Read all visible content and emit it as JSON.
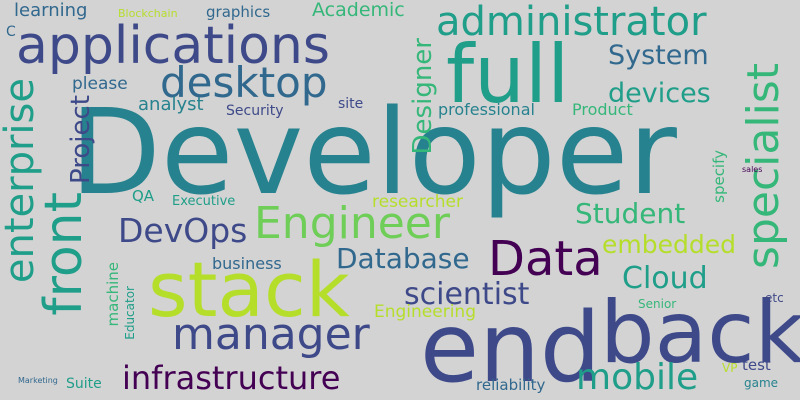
{
  "palette": {
    "background": "#d3d3d3",
    "dark_purple": "#440154",
    "indigo": "#3e4989",
    "blue_teal": "#31688e",
    "teal": "#26828e",
    "green_teal": "#1f9e89",
    "green": "#35b779",
    "light_green": "#6ece58",
    "lime": "#b5de2b"
  },
  "words": [
    {
      "text": "Developer",
      "orientation": "horizontal",
      "color": "#26828e"
    },
    {
      "text": "end",
      "orientation": "horizontal",
      "color": "#3e4989"
    },
    {
      "text": "back",
      "orientation": "horizontal",
      "color": "#3e4989"
    },
    {
      "text": "full",
      "orientation": "horizontal",
      "color": "#1f9e89"
    },
    {
      "text": "stack",
      "orientation": "horizontal",
      "color": "#b5de2b"
    },
    {
      "text": "applications",
      "orientation": "horizontal",
      "color": "#3e4989"
    },
    {
      "text": "front",
      "orientation": "vertical",
      "color": "#1f9e89"
    },
    {
      "text": "administrator",
      "orientation": "horizontal",
      "color": "#1f9e89"
    },
    {
      "text": "desktop",
      "orientation": "horizontal",
      "color": "#31688e"
    },
    {
      "text": "specialist",
      "orientation": "vertical",
      "color": "#35b779"
    },
    {
      "text": "enterprise",
      "orientation": "vertical",
      "color": "#1f9e89"
    },
    {
      "text": "manager",
      "orientation": "horizontal",
      "color": "#3e4989"
    },
    {
      "text": "Data",
      "orientation": "horizontal",
      "color": "#440154"
    },
    {
      "text": "Engineer",
      "orientation": "horizontal",
      "color": "#6ece58"
    },
    {
      "text": "mobile",
      "orientation": "horizontal",
      "color": "#1f9e89"
    },
    {
      "text": "infrastructure",
      "orientation": "horizontal",
      "color": "#440154"
    },
    {
      "text": "DevOps",
      "orientation": "horizontal",
      "color": "#3e4989"
    },
    {
      "text": "Database",
      "orientation": "horizontal",
      "color": "#31688e"
    },
    {
      "text": "Cloud",
      "orientation": "horizontal",
      "color": "#1f9e89"
    },
    {
      "text": "scientist",
      "orientation": "horizontal",
      "color": "#3e4989"
    },
    {
      "text": "Student",
      "orientation": "horizontal",
      "color": "#35b779"
    },
    {
      "text": "System",
      "orientation": "horizontal",
      "color": "#31688e"
    },
    {
      "text": "devices",
      "orientation": "horizontal",
      "color": "#1f9e89"
    },
    {
      "text": "Designer",
      "orientation": "vertical",
      "color": "#35b779"
    },
    {
      "text": "Project",
      "orientation": "vertical",
      "color": "#3e4989"
    },
    {
      "text": "embedded",
      "orientation": "horizontal",
      "color": "#b5de2b"
    },
    {
      "text": "Academic",
      "orientation": "horizontal",
      "color": "#35b779"
    },
    {
      "text": "learning",
      "orientation": "horizontal",
      "color": "#31688e"
    },
    {
      "text": "Blockchain",
      "orientation": "horizontal",
      "color": "#b5de2b"
    },
    {
      "text": "graphics",
      "orientation": "horizontal",
      "color": "#31688e"
    },
    {
      "text": "C",
      "orientation": "horizontal",
      "color": "#31688e"
    },
    {
      "text": "please",
      "orientation": "horizontal",
      "color": "#31688e"
    },
    {
      "text": "analyst",
      "orientation": "horizontal",
      "color": "#26828e"
    },
    {
      "text": "Security",
      "orientation": "horizontal",
      "color": "#3e4989"
    },
    {
      "text": "site",
      "orientation": "horizontal",
      "color": "#3e4989"
    },
    {
      "text": "professional",
      "orientation": "horizontal",
      "color": "#26828e"
    },
    {
      "text": "Product",
      "orientation": "horizontal",
      "color": "#35b779"
    },
    {
      "text": "QA",
      "orientation": "horizontal",
      "color": "#1f9e89"
    },
    {
      "text": "Executive",
      "orientation": "horizontal",
      "color": "#1f9e89"
    },
    {
      "text": "researcher",
      "orientation": "horizontal",
      "color": "#b5de2b"
    },
    {
      "text": "specify",
      "orientation": "vertical",
      "color": "#35b779"
    },
    {
      "text": "sales",
      "orientation": "horizontal",
      "color": "#440154"
    },
    {
      "text": "business",
      "orientation": "horizontal",
      "color": "#31688e"
    },
    {
      "text": "machine",
      "orientation": "vertical",
      "color": "#35b779"
    },
    {
      "text": "Educator",
      "orientation": "vertical",
      "color": "#1f9e89"
    },
    {
      "text": "Engineering",
      "orientation": "horizontal",
      "color": "#b5de2b"
    },
    {
      "text": "Senior",
      "orientation": "horizontal",
      "color": "#35b779"
    },
    {
      "text": "etc",
      "orientation": "horizontal",
      "color": "#3e4989"
    },
    {
      "text": "test",
      "orientation": "horizontal",
      "color": "#3e4989"
    },
    {
      "text": "VP",
      "orientation": "horizontal",
      "color": "#b5de2b"
    },
    {
      "text": "game",
      "orientation": "horizontal",
      "color": "#26828e"
    },
    {
      "text": "Marketing",
      "orientation": "horizontal",
      "color": "#31688e"
    },
    {
      "text": "Suite",
      "orientation": "horizontal",
      "color": "#1f9e89"
    },
    {
      "text": "reliability",
      "orientation": "horizontal",
      "color": "#31688e"
    }
  ]
}
